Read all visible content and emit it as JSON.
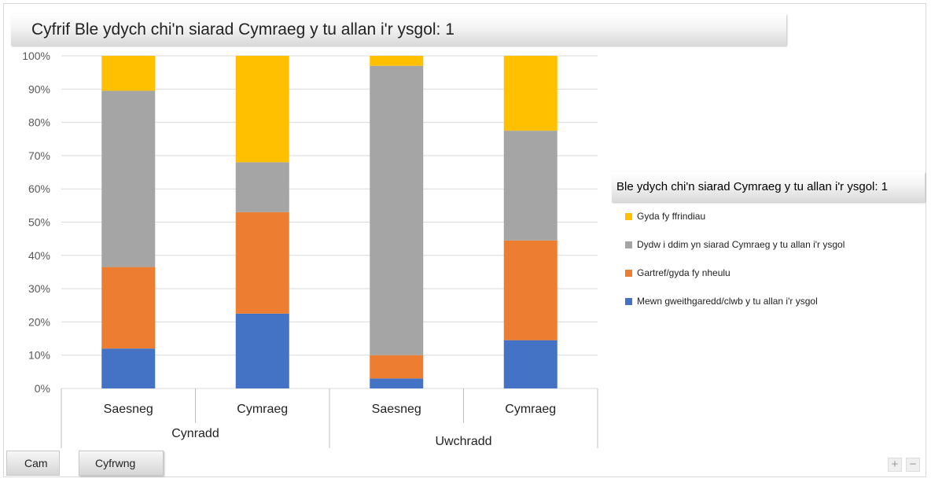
{
  "title": "Cyfrif Ble ydych chi'n siarad Cymraeg y tu allan i'r ysgol: 1",
  "legend": {
    "title": "Ble ydych chi'n siarad Cymraeg y tu allan i'r ysgol: 1",
    "items": [
      {
        "label": "Gyda fy ffrindiau",
        "color": "#FFC000"
      },
      {
        "label": "Dydw i ddim yn siarad Cymraeg y tu allan i'r ysgol",
        "color": "#A5A5A5"
      },
      {
        "label": "Gartref/gyda fy nheulu",
        "color": "#ED7D31"
      },
      {
        "label": "Mewn gweithgaredd/clwb y tu allan i'r ysgol",
        "color": "#4472C4"
      }
    ]
  },
  "buttons": {
    "cam": "Cam",
    "cyfrwng": "Cyfrwng"
  },
  "zoom": {
    "plus": "+",
    "minus": "−"
  },
  "chart_data": {
    "type": "bar",
    "stacked": true,
    "percent": true,
    "title": "Cyfrif Ble ydych chi'n siarad Cymraeg y tu allan i'r ysgol: 1",
    "categories": [
      "Saesneg",
      "Cymraeg",
      "Saesneg",
      "Cymraeg"
    ],
    "groups": [
      {
        "label": "Cynradd",
        "count": 2
      },
      {
        "label": "Uwchradd",
        "count": 2
      }
    ],
    "ylim": [
      0,
      100
    ],
    "yticks": [
      "0%",
      "10%",
      "20%",
      "30%",
      "40%",
      "50%",
      "60%",
      "70%",
      "80%",
      "90%",
      "100%"
    ],
    "grid": true,
    "legend_position": "right",
    "series": [
      {
        "name": "Mewn gweithgaredd/clwb y tu allan i'r ysgol",
        "color": "#4472C4",
        "values": [
          12,
          22.5,
          3,
          14.5
        ]
      },
      {
        "name": "Gartref/gyda fy nheulu",
        "color": "#ED7D31",
        "values": [
          24.5,
          30.5,
          7,
          30
        ]
      },
      {
        "name": "Dydw i ddim yn siarad Cymraeg y tu allan i'r ysgol",
        "color": "#A5A5A5",
        "values": [
          53,
          15,
          87,
          33
        ]
      },
      {
        "name": "Gyda fy ffrindiau",
        "color": "#FFC000",
        "values": [
          10.5,
          32,
          3,
          22.5
        ]
      }
    ]
  }
}
